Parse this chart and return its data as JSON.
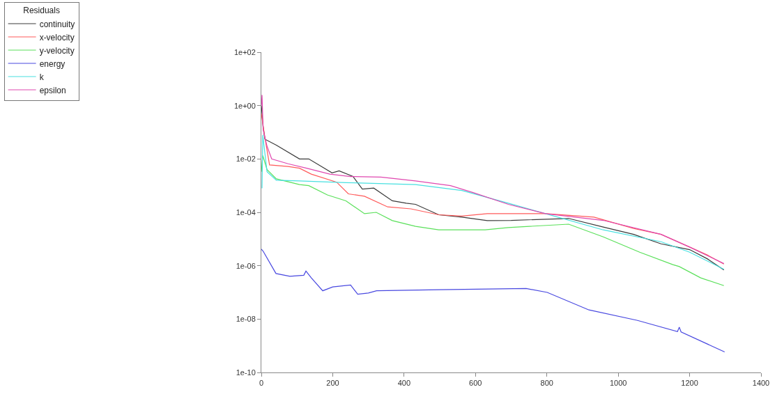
{
  "chart_data": {
    "type": "line",
    "legend_title": "Residuals",
    "legend": "top left",
    "log": "y",
    "marker": "none",
    "line_style": "solid",
    "xlim": [
      0,
      1400
    ],
    "xticks": [
      0,
      200,
      400,
      600,
      800,
      1000,
      1200,
      1400
    ],
    "ylim": [
      1e-10,
      100
    ],
    "yticks": [
      {
        "value": 100,
        "label": "1e+02"
      },
      {
        "value": 1,
        "label": "1e+00"
      },
      {
        "value": 0.01,
        "label": "1e-02"
      },
      {
        "value": 0.0001,
        "label": "1e-04"
      },
      {
        "value": 1e-06,
        "label": "1e-06"
      },
      {
        "value": 1e-08,
        "label": "1e-08"
      },
      {
        "value": 1e-10,
        "label": "1e-10"
      }
    ],
    "series": [
      {
        "name": "continuity",
        "color": "#3a3a3a",
        "x": [
          0,
          5,
          10,
          42,
          107,
          133,
          172,
          198,
          218,
          257,
          283,
          315,
          367,
          406,
          432,
          497,
          562,
          633,
          700,
          861,
          958,
          1043,
          1120,
          1200,
          1250,
          1296
        ],
        "values": [
          1.0,
          0.16,
          0.055,
          0.033,
          0.01,
          0.01,
          0.0049,
          0.003,
          0.0036,
          0.0022,
          0.00074,
          0.00081,
          0.00027,
          0.00022,
          0.0002,
          8.1e-05,
          6.6e-05,
          4.9e-05,
          5e-05,
          5.9e-05,
          2.8e-05,
          1.5e-05,
          6.6e-06,
          4e-06,
          1.8e-06,
          6.9e-07
        ]
      },
      {
        "name": "x-velocity",
        "color": "#ff5a5a",
        "x": [
          0,
          10,
          23,
          75,
          107,
          140,
          211,
          244,
          289,
          354,
          419,
          497,
          562,
          633,
          796,
          932,
          1043,
          1120,
          1200,
          1250,
          1296
        ],
        "values": [
          0.5,
          0.063,
          0.006,
          0.0052,
          0.0045,
          0.0027,
          0.00135,
          0.00049,
          0.0004,
          0.00016,
          0.000135,
          8.1e-05,
          7.2e-05,
          8.9e-05,
          8.9e-05,
          6.6e-05,
          2.5e-05,
          1.5e-05,
          5e-06,
          2.5e-06,
          1.15e-06
        ]
      },
      {
        "name": "y-velocity",
        "color": "#5ae05a",
        "x": [
          0,
          4,
          16,
          42,
          107,
          133,
          185,
          237,
          289,
          322,
          367,
          432,
          497,
          627,
          692,
          861,
          958,
          1060,
          1153,
          1171,
          1231,
          1296
        ],
        "values": [
          0.0033,
          0.0135,
          0.004,
          0.0018,
          0.0011,
          0.001,
          0.00045,
          0.00027,
          8.9e-05,
          0.0001,
          4.9e-05,
          3e-05,
          2.2e-05,
          2.2e-05,
          2.7e-05,
          3.6e-05,
          1.2e-05,
          3.2e-06,
          1.1e-06,
          9.3e-07,
          3.5e-07,
          1.8e-07
        ]
      },
      {
        "name": "energy",
        "color": "#4848e0",
        "x": [
          0,
          5,
          41,
          80,
          119,
          125,
          140,
          172,
          200,
          250,
          270,
          300,
          323,
          499,
          742,
          801,
          918,
          1054,
          1166,
          1171,
          1176,
          1298
        ],
        "values": [
          4.2e-06,
          3.5e-06,
          5.1e-07,
          4e-07,
          4.4e-07,
          6.3e-07,
          3.5e-07,
          1.15e-07,
          1.6e-07,
          1.9e-07,
          8.5e-08,
          9.5e-08,
          1.15e-07,
          1.26e-07,
          1.4e-07,
          1e-07,
          2.2e-08,
          8.9e-09,
          3.4e-09,
          5e-09,
          3.3e-09,
          5.9e-10
        ]
      },
      {
        "name": "k",
        "color": "#48e0e0",
        "x": [
          2,
          4,
          16,
          42,
          107,
          237,
          432,
          562,
          692,
          796,
          958,
          1120,
          1200,
          1296
        ],
        "values": [
          0.00079,
          0.079,
          0.0033,
          0.0016,
          0.0015,
          0.0013,
          0.0011,
          0.00066,
          0.00022,
          8.9e-05,
          2.2e-05,
          7.9e-06,
          3.2e-06,
          7.4e-07
        ]
      },
      {
        "name": "epsilon",
        "color": "#e048b0",
        "x": [
          0,
          2,
          5,
          16,
          29,
          75,
          127,
          192,
          250,
          335,
          432,
          530,
          595,
          692,
          796,
          958,
          1120,
          1200,
          1296
        ],
        "values": [
          1.0,
          2.5,
          0.126,
          0.03,
          0.01,
          0.0066,
          0.0045,
          0.0027,
          0.0022,
          0.0021,
          0.0015,
          0.001,
          0.00054,
          0.0002,
          8.9e-05,
          5e-05,
          1.5e-05,
          5e-06,
          1.2e-06
        ]
      }
    ]
  }
}
